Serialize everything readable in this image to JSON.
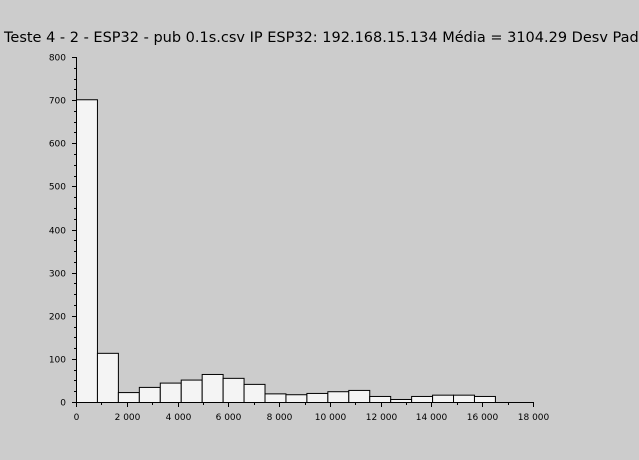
{
  "chart_data": {
    "type": "bar",
    "title": "Teste 4 - 2 - ESP32 - pub 0.1s.csv IP ESP32: 192.168.15.134 Média = 3104.29 Desv Pad",
    "xlabel": "",
    "ylabel": "",
    "xlim": [
      0,
      18000
    ],
    "ylim": [
      0,
      800
    ],
    "x_ticks": [
      0,
      2000,
      4000,
      6000,
      8000,
      10000,
      12000,
      14000,
      16000,
      18000
    ],
    "x_tick_labels": [
      "0",
      "2 000",
      "4 000",
      "6 000",
      "8 000",
      "10 000",
      "12 000",
      "14 000",
      "16 000",
      "18 000"
    ],
    "y_ticks": [
      0,
      100,
      200,
      300,
      400,
      500,
      600,
      700,
      800
    ],
    "y_tick_labels": [
      "0",
      "100",
      "200",
      "300",
      "400",
      "500",
      "600",
      "700",
      "800"
    ],
    "grid": false,
    "bin_width": 825,
    "bins": [
      {
        "start": 0,
        "value": 702
      },
      {
        "start": 825,
        "value": 114
      },
      {
        "start": 1650,
        "value": 23
      },
      {
        "start": 2475,
        "value": 35
      },
      {
        "start": 3300,
        "value": 45
      },
      {
        "start": 4125,
        "value": 52
      },
      {
        "start": 4950,
        "value": 65
      },
      {
        "start": 5775,
        "value": 56
      },
      {
        "start": 6600,
        "value": 42
      },
      {
        "start": 7425,
        "value": 20
      },
      {
        "start": 8250,
        "value": 18
      },
      {
        "start": 9075,
        "value": 21
      },
      {
        "start": 9900,
        "value": 25
      },
      {
        "start": 10725,
        "value": 28
      },
      {
        "start": 11550,
        "value": 14
      },
      {
        "start": 12375,
        "value": 7
      },
      {
        "start": 13200,
        "value": 14
      },
      {
        "start": 14025,
        "value": 17
      },
      {
        "start": 14850,
        "value": 17
      },
      {
        "start": 15675,
        "value": 14
      }
    ],
    "bar_fill": "#f4f4f4",
    "bar_stroke": "#000000",
    "background": "#cccccc"
  }
}
